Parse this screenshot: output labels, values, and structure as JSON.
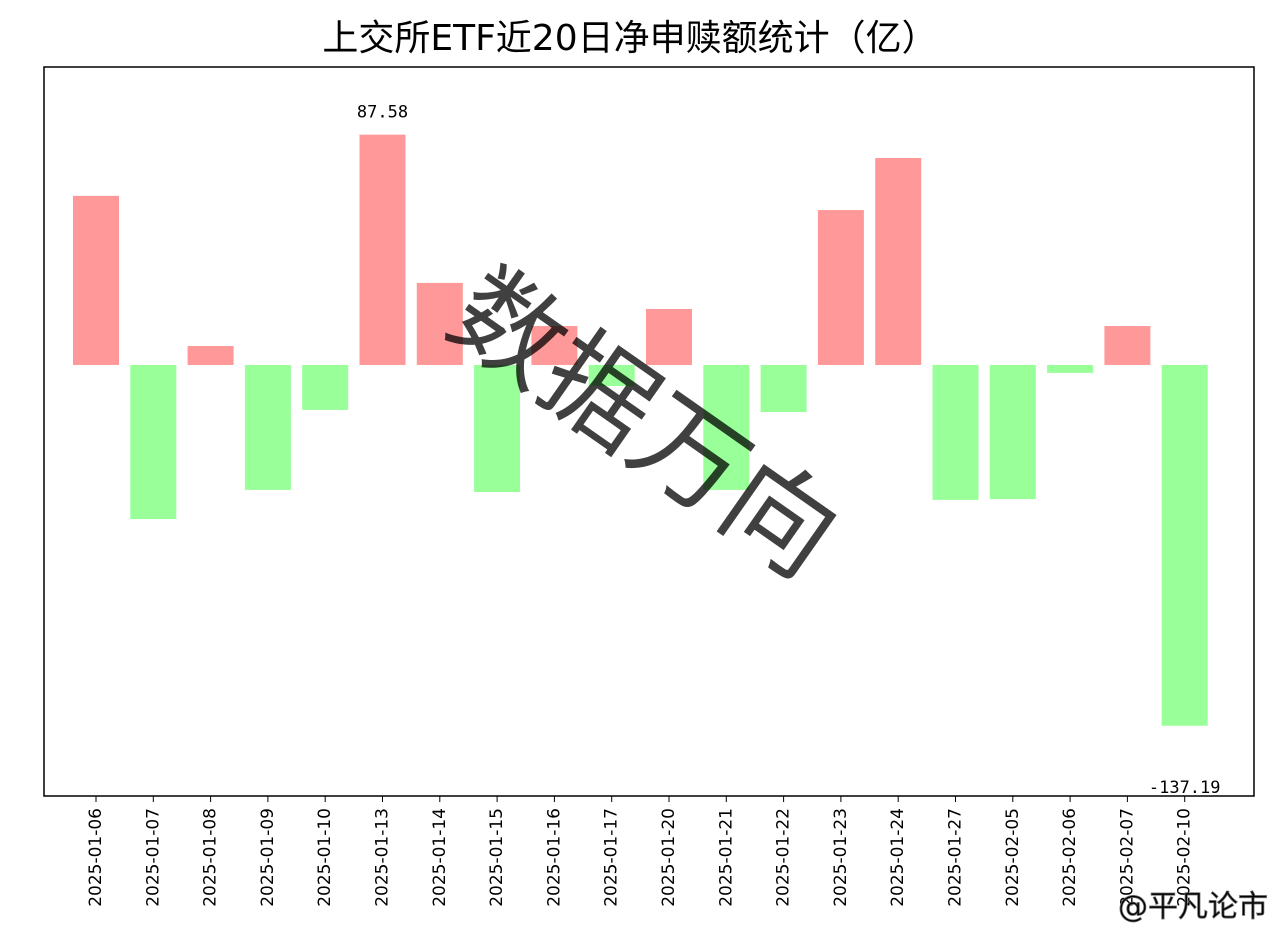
{
  "chart_data": {
    "type": "bar",
    "title": "上交所ETF近20日净申赎额统计（亿）",
    "categories": [
      "2025-01-06",
      "2025-01-07",
      "2025-01-08",
      "2025-01-09",
      "2025-01-10",
      "2025-01-13",
      "2025-01-14",
      "2025-01-15",
      "2025-01-16",
      "2025-01-17",
      "2025-01-20",
      "2025-01-21",
      "2025-01-22",
      "2025-01-23",
      "2025-01-24",
      "2025-01-27",
      "2025-02-05",
      "2025-02-06",
      "2025-02-07",
      "2025-02-10"
    ],
    "values": [
      64.3,
      -58.6,
      7.2,
      -47.5,
      -17.1,
      87.58,
      31.2,
      -48.3,
      14.8,
      -8,
      21.3,
      -47.5,
      -17.9,
      58.9,
      78.7,
      -51.3,
      -51.0,
      -3.0,
      14.8,
      -137.19
    ],
    "value_labels": [
      null,
      null,
      null,
      null,
      null,
      "87.58",
      null,
      null,
      null,
      null,
      null,
      null,
      null,
      null,
      null,
      null,
      null,
      null,
      null,
      "-137.19"
    ],
    "positive_color": "#ff9999",
    "negative_color": "#99ff99",
    "ylim": [
      -163.9,
      113.3
    ],
    "watermarks": [
      "数据万向",
      "@平凡论市"
    ]
  }
}
